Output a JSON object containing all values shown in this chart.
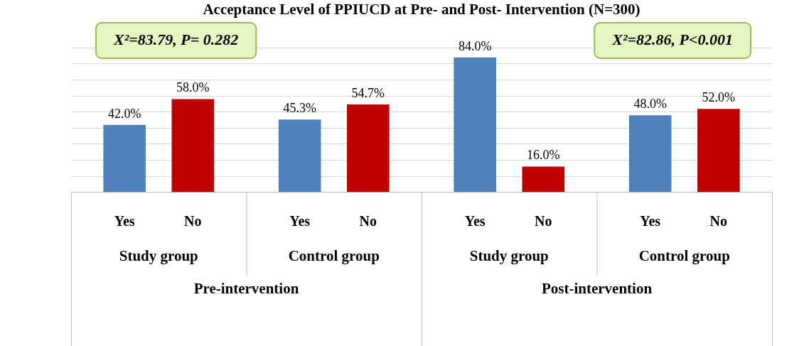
{
  "chart_data": {
    "type": "bar",
    "title": "Acceptance Level of PPIUCD at Pre- and Post- Intervention (N=300)",
    "categories": [
      "Study group",
      "Control group",
      "Study group",
      "Control group"
    ],
    "series": [
      {
        "name": "Yes",
        "color": "#4f81bd",
        "values": [
          42.0,
          45.3,
          84.0,
          48.0
        ],
        "value_labels": [
          "42.0%",
          "45.3%",
          "84.0%",
          "48.0%"
        ]
      },
      {
        "name": "No",
        "color": "#c00000",
        "values": [
          58.0,
          54.7,
          16.0,
          52.0
        ],
        "value_labels": [
          "58.0%",
          "54.7%",
          "16.0%",
          "52.0%"
        ]
      }
    ],
    "grid": "y",
    "tick_labels": "x",
    "legend": false,
    "annotations": [
      "X²=83.79, P= 0.282",
      "X²=82.86, P<0.001",
      "Pre-intervention",
      "Post-intervention"
    ]
  }
}
